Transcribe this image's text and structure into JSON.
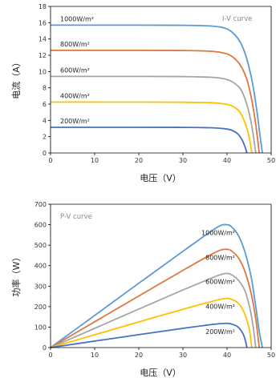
{
  "colors": {
    "s1000": "#5B9BD5",
    "s800": "#E0763C",
    "s600": "#A5A5A5",
    "s400": "#FFC000",
    "s200": "#4472C4",
    "axis": "#000000"
  },
  "chart_data": [
    {
      "type": "line",
      "title": "I-V curve",
      "xlabel": "电压（V）",
      "ylabel": "电流（A）",
      "xlim": [
        0,
        50
      ],
      "ylim": [
        0,
        18
      ],
      "xticks": [
        0,
        10,
        20,
        30,
        40,
        50
      ],
      "yticks": [
        0,
        2,
        4,
        6,
        8,
        10,
        12,
        14,
        16,
        18
      ],
      "grid": false,
      "series": [
        {
          "name": "1000W/m²",
          "color_key": "s1000",
          "points": [
            [
              0,
              15.7
            ],
            [
              20,
              15.7
            ],
            [
              30,
              15.68
            ],
            [
              36,
              15.6
            ],
            [
              39,
              15.4
            ],
            [
              41,
              14.9
            ],
            [
              43,
              13.6
            ],
            [
              44.5,
              11.5
            ],
            [
              45.8,
              8.5
            ],
            [
              46.8,
              5
            ],
            [
              47.5,
              2
            ],
            [
              48,
              0
            ]
          ]
        },
        {
          "name": "800W/m²",
          "color_key": "s800",
          "points": [
            [
              0,
              12.6
            ],
            [
              20,
              12.6
            ],
            [
              30,
              12.58
            ],
            [
              36,
              12.5
            ],
            [
              39,
              12.3
            ],
            [
              41,
              11.9
            ],
            [
              43,
              10.8
            ],
            [
              44.5,
              9
            ],
            [
              45.6,
              6.5
            ],
            [
              46.5,
              3.5
            ],
            [
              47.3,
              0
            ]
          ]
        },
        {
          "name": "600W/m²",
          "color_key": "s600",
          "points": [
            [
              0,
              9.4
            ],
            [
              20,
              9.4
            ],
            [
              30,
              9.38
            ],
            [
              36,
              9.3
            ],
            [
              39,
              9.15
            ],
            [
              41,
              8.8
            ],
            [
              43,
              7.9
            ],
            [
              44.3,
              6.3
            ],
            [
              45.3,
              4.2
            ],
            [
              46,
              2
            ],
            [
              46.5,
              0
            ]
          ]
        },
        {
          "name": "400W/m²",
          "color_key": "s400",
          "points": [
            [
              0,
              6.25
            ],
            [
              20,
              6.25
            ],
            [
              30,
              6.23
            ],
            [
              36,
              6.18
            ],
            [
              39,
              6.05
            ],
            [
              41,
              5.8
            ],
            [
              42.8,
              5.1
            ],
            [
              44,
              3.8
            ],
            [
              45,
              2
            ],
            [
              45.6,
              0
            ]
          ]
        },
        {
          "name": "200W/m²",
          "color_key": "s200",
          "points": [
            [
              0,
              3.15
            ],
            [
              20,
              3.15
            ],
            [
              30,
              3.14
            ],
            [
              36,
              3.1
            ],
            [
              39,
              3.0
            ],
            [
              41,
              2.8
            ],
            [
              42.5,
              2.3
            ],
            [
              43.5,
              1.5
            ],
            [
              44.1,
              0.7
            ],
            [
              44.5,
              0
            ]
          ]
        }
      ]
    },
    {
      "type": "line",
      "title": "P-V curve",
      "xlabel": "电压（V）",
      "ylabel": "功率（W）",
      "xlim": [
        0,
        50
      ],
      "ylim": [
        0,
        700
      ],
      "xticks": [
        0,
        10,
        20,
        30,
        40,
        50
      ],
      "yticks": [
        0,
        100,
        200,
        300,
        400,
        500,
        600,
        700
      ],
      "grid": false,
      "series": [
        {
          "name": "1000W/m²",
          "color_key": "s1000",
          "points": [
            [
              0,
              0
            ],
            [
              10,
              157
            ],
            [
              20,
              314
            ],
            [
              30,
              470
            ],
            [
              36,
              562
            ],
            [
              38.5,
              596
            ],
            [
              40,
              600
            ],
            [
              41,
              590
            ],
            [
              42.5,
              550
            ],
            [
              44,
              470
            ],
            [
              45.5,
              340
            ],
            [
              46.5,
              200
            ],
            [
              47.3,
              80
            ],
            [
              48,
              0
            ]
          ]
        },
        {
          "name": "800W/m²",
          "color_key": "s800",
          "points": [
            [
              0,
              0
            ],
            [
              10,
              126
            ],
            [
              20,
              252
            ],
            [
              30,
              377
            ],
            [
              36,
              450
            ],
            [
              38.5,
              476
            ],
            [
              40,
              480
            ],
            [
              41,
              472
            ],
            [
              42.5,
              440
            ],
            [
              44,
              375
            ],
            [
              45.5,
              260
            ],
            [
              46.5,
              140
            ],
            [
              47.3,
              0
            ]
          ]
        },
        {
          "name": "600W/m²",
          "color_key": "s600",
          "points": [
            [
              0,
              0
            ],
            [
              10,
              94
            ],
            [
              20,
              188
            ],
            [
              30,
              281
            ],
            [
              36,
              335
            ],
            [
              38.5,
              356
            ],
            [
              40,
              362
            ],
            [
              41,
              356
            ],
            [
              42.5,
              330
            ],
            [
              44,
              280
            ],
            [
              45.2,
              190
            ],
            [
              46,
              90
            ],
            [
              46.5,
              0
            ]
          ]
        },
        {
          "name": "400W/m²",
          "color_key": "s400",
          "points": [
            [
              0,
              0
            ],
            [
              10,
              62.5
            ],
            [
              20,
              125
            ],
            [
              30,
              187
            ],
            [
              36,
              222
            ],
            [
              38.5,
              236
            ],
            [
              40,
              240
            ],
            [
              41,
              236
            ],
            [
              42.5,
              218
            ],
            [
              43.8,
              175
            ],
            [
              45,
              95
            ],
            [
              45.6,
              0
            ]
          ]
        },
        {
          "name": "200W/m²",
          "color_key": "s200",
          "points": [
            [
              0,
              0
            ],
            [
              10,
              31.5
            ],
            [
              20,
              63
            ],
            [
              30,
              94
            ],
            [
              36,
              111
            ],
            [
              38.5,
              117
            ],
            [
              40,
              118
            ],
            [
              41,
              115
            ],
            [
              42.5,
              100
            ],
            [
              43.6,
              68
            ],
            [
              44.2,
              30
            ],
            [
              44.5,
              0
            ]
          ]
        }
      ]
    }
  ]
}
